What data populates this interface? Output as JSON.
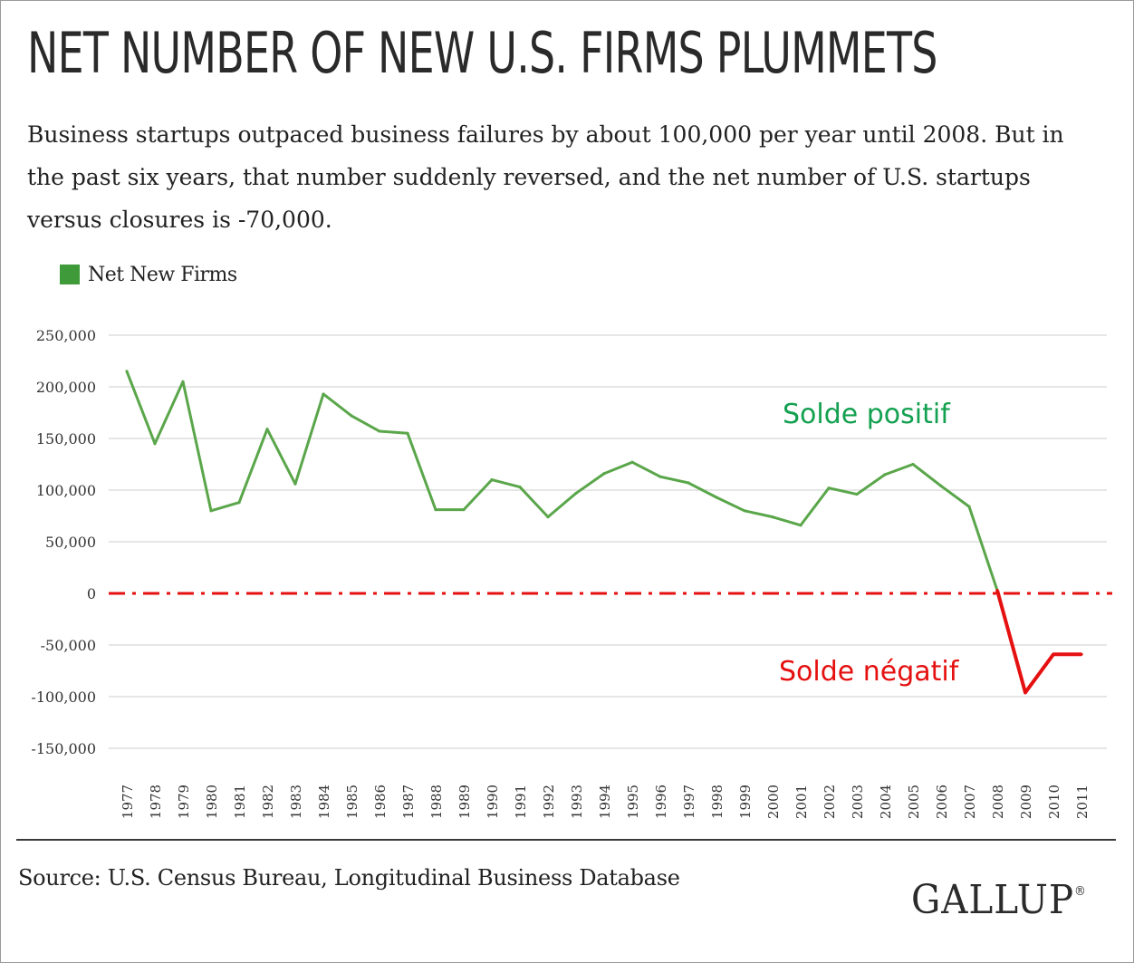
{
  "header": {
    "title": "NET NUMBER OF NEW U.S. FIRMS PLUMMETS",
    "subtitle": "Business startups outpaced business failures by about 100,000 per year until 2008. But in the past six years, that number suddenly reversed, and the net number of U.S. startups versus closures is -70,000."
  },
  "legend": {
    "label": "Net New Firms"
  },
  "annotations": {
    "positive": "Solde positif",
    "negative": "Solde négatif"
  },
  "footer": {
    "source": "Source: U.S. Census Bureau, Longitudinal Business Database",
    "logo": "GALLUP"
  },
  "colors": {
    "series": "#5aa64a",
    "legend": "#3f9b3a",
    "negative": "#e51010",
    "positive_text": "#13a050",
    "grid": "#dedede"
  },
  "chart_data": {
    "type": "line",
    "title": "NET NUMBER OF NEW U.S. FIRMS PLUMMETS",
    "xlabel": "",
    "ylabel": "",
    "categories": [
      "1977",
      "1978",
      "1979",
      "1980",
      "1981",
      "1982",
      "1983",
      "1984",
      "1985",
      "1986",
      "1987",
      "1988",
      "1989",
      "1990",
      "1991",
      "1992",
      "1993",
      "1994",
      "1995",
      "1996",
      "1997",
      "1998",
      "1999",
      "2000",
      "2001",
      "2002",
      "2003",
      "2004",
      "2005",
      "2006",
      "2007",
      "2008",
      "2009",
      "2010",
      "2011"
    ],
    "series": [
      {
        "name": "Net New Firms",
        "values": [
          215000,
          145000,
          205000,
          80000,
          88000,
          159000,
          106000,
          193000,
          172000,
          157000,
          155000,
          81000,
          81000,
          110000,
          103000,
          74000,
          97000,
          116000,
          127000,
          113000,
          107000,
          93000,
          80000,
          74000,
          66000,
          102000,
          96000,
          115000,
          125000,
          104000,
          84000,
          3000,
          -96000,
          -59000,
          -59000
        ]
      }
    ],
    "highlight_negative_from": "2008",
    "reference_line": {
      "y": 0,
      "style": "dash-dot"
    },
    "yticks": [
      250000,
      200000,
      150000,
      100000,
      50000,
      0,
      -50000,
      -100000,
      -150000
    ],
    "ytick_labels": [
      "250,000",
      "200,000",
      "150,000",
      "100,000",
      "50,000",
      "0",
      "-50,000",
      "-100,000",
      "-150,000"
    ],
    "ylim": [
      -150000,
      250000
    ],
    "grid": true,
    "legend_position": "top-left"
  }
}
